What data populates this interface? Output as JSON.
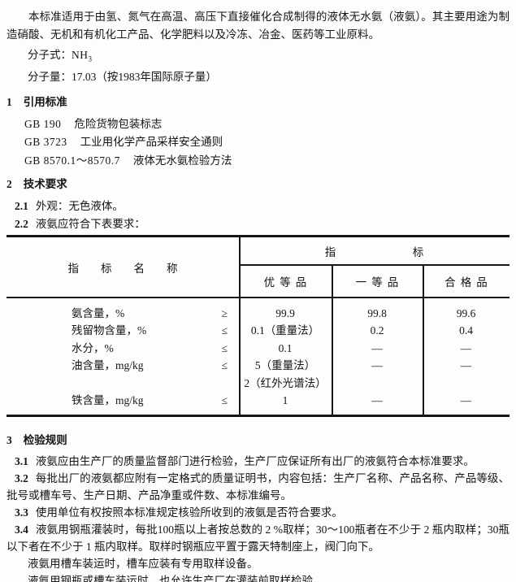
{
  "document": {
    "intro": "本标准适用于由氢、氮气在高温、高压下直接催化合成制得的液体无水氨（液氨）。其主要用途为制造硝酸、无机和有机化工产品、化学肥料以及冷冻、冶金、医药等工业原料。",
    "formula_label": "分子式：",
    "formula_main": "NH",
    "formula_sub": "3",
    "molecular_weight_line": "分子量：17.03（按1983年国际原子量）"
  },
  "section_1": {
    "number": "1",
    "title": "引用标准",
    "references": [
      {
        "code": "GB 190",
        "name": "危险货物包装标志"
      },
      {
        "code": "GB 3723",
        "name": "工业用化学产品采样安全通则"
      },
      {
        "code": "GB 8570.1～8570.7",
        "name": "液体无水氨检验方法"
      }
    ]
  },
  "section_2": {
    "number": "2",
    "title": "技术要求",
    "clauses": [
      {
        "number": "2.1",
        "text": "外观：无色液体。"
      },
      {
        "number": "2.2",
        "text": "液氨应符合下表要求："
      }
    ]
  },
  "table": {
    "item_header": "指标名称",
    "index_header": "指标",
    "grade_headers": [
      "优等品",
      "一等品",
      "合格品"
    ],
    "rows": [
      {
        "name": "氨含量，%",
        "operator": "≥",
        "premium": "99.9",
        "first_grade": "99.8",
        "qualified": "99.6"
      },
      {
        "name": "残留物含量，%",
        "operator": "≤",
        "premium": "0.1（重量法）",
        "first_grade": "0.2",
        "qualified": "0.4"
      },
      {
        "name": "水分，%",
        "operator": "≤",
        "premium": "0.1",
        "first_grade": "—",
        "qualified": "—"
      },
      {
        "name": "油含量，mg/kg",
        "operator": "≤",
        "premium": "5（重量法）",
        "premium_line2": "2（红外光谱法）",
        "first_grade": "—",
        "qualified": "—"
      },
      {
        "name": "铁含量，mg/kg",
        "operator": "≤",
        "premium": "1",
        "first_grade": "—",
        "qualified": "—"
      }
    ]
  },
  "section_3": {
    "number": "3",
    "title": "检验规则",
    "clauses": [
      {
        "number": "3.1",
        "text": "液氨应由生产厂的质量监督部门进行检验，生产厂应保证所有出厂的液氨符合本标准要求。"
      },
      {
        "number": "3.2",
        "text": "每批出厂的液氨都应附有一定格式的质量证明书，内容包括：生产厂名称、产品名称、产品等级、批号或槽车号、生产日期、产品净重或件数、本标准编号。"
      },
      {
        "number": "3.3",
        "text": "使用单位有权按照本标准规定核验所收到的液氨是否符合要求。"
      },
      {
        "number": "3.4",
        "text": "液氨用钢瓶灌装时，每批100瓶以上者按总数的 2 %取样；30～100瓶者在不少于 2 瓶内取样；30瓶以下者在不少于 1 瓶内取样。取样时钢瓶应平置于露天特制座上，阀门向下。"
      }
    ],
    "paragraphs": [
      "液氨用槽车装运时，槽车应装有专用取样设备。",
      "液氨用钢瓶或槽车装运时，也允许生产厂在灌装前取样检验。"
    ]
  }
}
